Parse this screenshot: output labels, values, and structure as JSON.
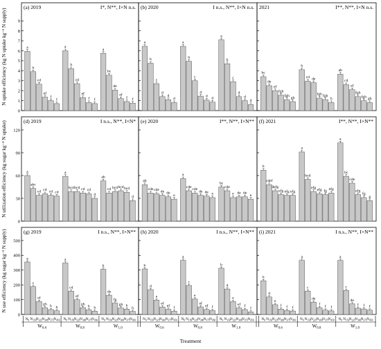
{
  "figure": {
    "xlabel": "Treatment",
    "ylabels": [
      "N uptake efficiency (kg N uptake kg⁻¹ N supply)",
      "N utilization efficiency (kg sugar kg⁻¹ N uptake)",
      "N use efficiency (kg sugar kg⁻¹ N supply)"
    ],
    "group_labels": [
      "W",
      "W",
      "W"
    ],
    "group_subscripts": [
      "0.6",
      "0.8",
      "1.0"
    ],
    "treatment_labels": [
      "N",
      "N",
      "N",
      "N",
      "N",
      "N"
    ],
    "treatment_subscripts": [
      "0",
      "150",
      "225",
      "300",
      "375",
      "450"
    ],
    "colors": {
      "bar_fill": "#c8c8c8",
      "bar_stroke": "#555555",
      "axis": "#000000"
    }
  },
  "chart_data": [
    {
      "type": "bar",
      "panel": "(a) 2019",
      "stats": "I*, N**, I×N n.s.",
      "yticks": [
        0,
        1,
        2,
        3,
        4,
        5,
        6,
        7,
        8,
        9
      ],
      "ylim": [
        0,
        9.5
      ],
      "groups": [
        "W0.6",
        "W0.8",
        "W1.0"
      ],
      "categories": [
        "N0",
        "N150",
        "N225",
        "N300",
        "N375",
        "N450"
      ],
      "values": [
        [
          5.95,
          3.9,
          2.65,
          1.35,
          1.0,
          0.7
        ],
        [
          6.0,
          4.2,
          2.7,
          1.3,
          0.8,
          0.7
        ],
        [
          5.75,
          3.55,
          2.05,
          1.2,
          0.9,
          0.75
        ]
      ],
      "letters": [
        [
          "a",
          "b",
          "cd",
          "ef",
          "f",
          "f"
        ],
        [
          "a",
          "b",
          "cd",
          "ef",
          "f",
          "f"
        ],
        [
          "a",
          "bc",
          "de",
          "ef",
          "f",
          "f"
        ]
      ]
    },
    {
      "type": "bar",
      "panel": "(b) 2020",
      "stats": "I n.s., N**, I×N n.s.",
      "yticks": [
        0,
        1,
        2,
        3,
        4,
        5,
        6,
        7,
        8,
        9
      ],
      "ylim": [
        0,
        9.5
      ],
      "groups": [
        "W0.6",
        "W0.8",
        "W1.0"
      ],
      "categories": [
        "N0",
        "N150",
        "N225",
        "N300",
        "N375",
        "N450"
      ],
      "values": [
        [
          6.45,
          4.75,
          2.7,
          1.4,
          1.1,
          0.8
        ],
        [
          6.45,
          4.95,
          3.0,
          1.45,
          1.05,
          0.85
        ],
        [
          7.1,
          4.7,
          2.9,
          1.4,
          1.0,
          0.6
        ]
      ],
      "letters": [
        [
          "a",
          "b",
          "c",
          "d",
          "d",
          "d"
        ],
        [
          "a",
          "b",
          "c",
          "d",
          "d",
          "d"
        ],
        [
          "a",
          "b",
          "c",
          "d",
          "d",
          "d"
        ]
      ]
    },
    {
      "type": "bar",
      "panel": "2021",
      "stats": "I**, N**, I×N n.s.",
      "yticks": [
        0,
        1,
        2,
        3,
        4,
        5,
        6,
        7,
        8,
        9
      ],
      "ylim": [
        0,
        9.5
      ],
      "groups": [
        "W0.6",
        "W0.8",
        "W1.0"
      ],
      "categories": [
        "N0",
        "N150",
        "N225",
        "N300",
        "N375",
        "N450"
      ],
      "values": [
        [
          3.4,
          2.5,
          2.0,
          1.55,
          1.1,
          0.9
        ],
        [
          4.1,
          2.95,
          2.8,
          1.25,
          1.1,
          0.8
        ],
        [
          3.65,
          2.6,
          2.1,
          1.4,
          1.0,
          0.8
        ]
      ],
      "letters": [
        [
          "bc",
          "de",
          "ef",
          "fgh",
          "fgh",
          "gh"
        ],
        [
          "b",
          "cd",
          "de",
          "fgh",
          "fgh",
          "h"
        ],
        [
          "ab",
          "cd",
          "ef",
          "fgh",
          "fgh",
          "gh"
        ]
      ]
    },
    {
      "type": "bar",
      "panel": "(d) 2019",
      "stats": "I n.s., N**, I×N*",
      "yticks": [
        0,
        30,
        60,
        90,
        120
      ],
      "ylim": [
        0,
        120
      ],
      "groups": [
        "W0.6",
        "W0.8",
        "W1.0"
      ],
      "categories": [
        "N0",
        "N150",
        "N225",
        "N300",
        "N375",
        "N450"
      ],
      "values": [
        [
          60,
          43,
          34,
          36,
          34,
          33
        ],
        [
          59,
          39,
          39,
          37,
          36,
          30
        ],
        [
          53,
          37,
          39,
          40,
          38,
          27
        ]
      ],
      "letters": [
        [
          "a",
          "abc",
          "cd",
          "cd",
          "cd",
          "cd"
        ],
        [
          "a",
          "bcd",
          "bcd",
          "cd",
          "cd",
          "d"
        ],
        [
          "ab",
          "cd",
          "bcd",
          "bcd",
          "bcd",
          "d"
        ]
      ]
    },
    {
      "type": "bar",
      "panel": "(e) 2020",
      "stats": "I**, N**, I×N**",
      "yticks": [
        0,
        30,
        60,
        90,
        120
      ],
      "ylim": [
        0,
        120
      ],
      "groups": [
        "W0.6",
        "W0.8",
        "W1.0"
      ],
      "categories": [
        "N0",
        "N150",
        "N225",
        "N300",
        "N375",
        "N450"
      ],
      "values": [
        [
          48,
          37,
          36,
          34,
          32,
          29
        ],
        [
          56,
          40,
          37,
          34,
          33,
          31
        ],
        [
          45,
          40,
          31,
          32,
          32,
          29
        ]
      ],
      "letters": [
        [
          "ab",
          "cde",
          "cde",
          "de",
          "de",
          "e"
        ],
        [
          "a",
          "cde",
          "cde",
          "de",
          "de",
          "e"
        ],
        [
          "bc",
          "cde",
          "e",
          "de",
          "de",
          "e"
        ]
      ]
    },
    {
      "type": "bar",
      "panel": "(f) 2021",
      "stats": "I**, N**, I×N**",
      "yticks": [
        0,
        30,
        60,
        90,
        120
      ],
      "ylim": [
        0,
        120
      ],
      "groups": [
        "W0.6",
        "W0.8",
        "W1.0"
      ],
      "categories": [
        "N0",
        "N150",
        "N225",
        "N300",
        "N375",
        "N450"
      ],
      "values": [
        [
          67,
          48,
          40,
          35,
          34,
          34
        ],
        [
          91,
          55,
          39,
          36,
          35,
          37
        ],
        [
          103,
          59,
          50,
          35,
          31,
          27
        ]
      ],
      "letters": [
        [
          "b",
          "cdef",
          "defg",
          "efg",
          "efg",
          "efg"
        ],
        [
          "a",
          "bcd",
          "efg",
          "efg",
          "fg",
          "efg"
        ],
        [
          "a",
          "bc",
          "cde",
          "efg",
          "fg",
          "g"
        ]
      ]
    },
    {
      "type": "bar",
      "panel": "(g) 2019",
      "stats": "I n.s., N**, I×N**",
      "yticks": [
        0,
        100,
        200,
        300,
        400,
        500
      ],
      "ylim": [
        0,
        500
      ],
      "groups": [
        "W0.6",
        "W0.8",
        "W1.0"
      ],
      "categories": [
        "N0",
        "N150",
        "N225",
        "N300",
        "N375",
        "N450"
      ],
      "values": [
        [
          355,
          188,
          88,
          45,
          33,
          25
        ],
        [
          348,
          157,
          100,
          46,
          32,
          22
        ],
        [
          306,
          130,
          77,
          44,
          36,
          21
        ]
      ],
      "letters": [
        [
          "a",
          "c",
          "ef",
          "gh",
          "h",
          "h"
        ],
        [
          "a",
          "cd",
          "ef",
          "gh",
          "h",
          "h"
        ],
        [
          "b",
          "de",
          "fg",
          "gh",
          "h",
          "h"
        ]
      ]
    },
    {
      "type": "bar",
      "panel": "(h) 2020",
      "stats": "I n.s., N**, I×N**",
      "yticks": [
        0,
        100,
        200,
        300,
        400,
        500
      ],
      "ylim": [
        0,
        500
      ],
      "groups": [
        "W0.6",
        "W0.8",
        "W1.0"
      ],
      "categories": [
        "N0",
        "N150",
        "N225",
        "N300",
        "N375",
        "N450"
      ],
      "values": [
        [
          308,
          168,
          97,
          50,
          35,
          22
        ],
        [
          366,
          196,
          105,
          51,
          34,
          26
        ],
        [
          313,
          172,
          87,
          44,
          33,
          17
        ]
      ],
      "letters": [
        [
          "b",
          "d",
          "e",
          "ef",
          "ef",
          "f"
        ],
        [
          "a",
          "c",
          "e",
          "ef",
          "ef",
          "f"
        ],
        [
          "b",
          "d",
          "e",
          "ef",
          "f",
          "f"
        ]
      ]
    },
    {
      "type": "bar",
      "panel": "(i) 2021",
      "stats": "I n.s., N**, I×N**",
      "yticks": [
        0,
        100,
        200,
        300,
        400,
        500
      ],
      "ylim": [
        0,
        500
      ],
      "groups": [
        "W0.6",
        "W0.8",
        "W1.0"
      ],
      "categories": [
        "N0",
        "N150",
        "N225",
        "N300",
        "N375",
        "N450"
      ],
      "values": [
        [
          228,
          118,
          66,
          36,
          27,
          23
        ],
        [
          366,
          158,
          83,
          46,
          29,
          24
        ],
        [
          366,
          162,
          72,
          42,
          37,
          29
        ]
      ],
      "letters": [
        [
          "b",
          "d",
          "e",
          "f",
          "f",
          "f"
        ],
        [
          "a",
          "c",
          "de",
          "f",
          "f",
          "f"
        ],
        [
          "a",
          "c",
          "de",
          "f",
          "f",
          "f"
        ]
      ]
    }
  ]
}
